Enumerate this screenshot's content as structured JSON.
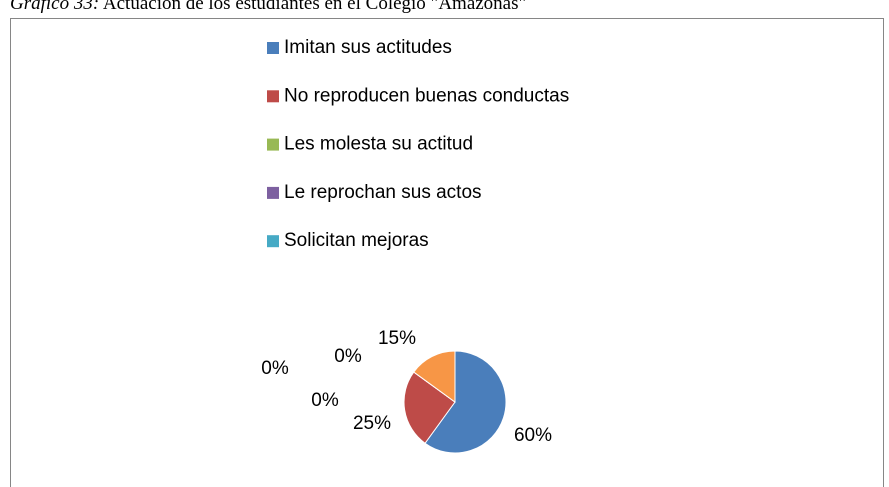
{
  "chart_data": {
    "type": "pie",
    "title_label": "Gráfico 33:",
    "title": "Actuación de los estudiantes en el Colegio \"Amazonas\"",
    "categories": [
      "Imitan sus actitudes",
      "No reproducen buenas conductas",
      "Les molesta su actitud",
      "Le reprochan sus actos",
      "Solicitan mejoras",
      null
    ],
    "values": [
      60,
      25,
      0,
      0,
      0,
      15
    ],
    "value_labels": [
      "60%",
      "25%",
      "0%",
      "0%",
      "0%",
      "15%"
    ],
    "colors": [
      "#4a7ebb",
      "#be4b48",
      "#98b954",
      "#7d60a0",
      "#46aac5",
      "#f79646"
    ]
  }
}
